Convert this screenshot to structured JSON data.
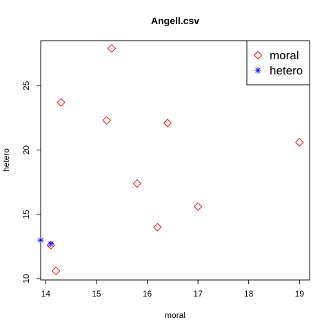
{
  "chart_data": {
    "type": "scatter",
    "title": "Angell.csv",
    "xlabel": "moral",
    "ylabel": "hetero",
    "xlim": [
      13.9,
      19.2
    ],
    "ylim": [
      9.9,
      28.5
    ],
    "xticks": [
      "14",
      "15",
      "16",
      "17",
      "18",
      "19"
    ],
    "yticks": [
      "10",
      "15",
      "20",
      "25"
    ],
    "legend_position": "top-right",
    "grid": false,
    "series": [
      {
        "name": "moral",
        "marker": "diamond",
        "color": "#ff0000",
        "points": [
          [
            15.3,
            27.9
          ],
          [
            14.3,
            23.7
          ],
          [
            15.2,
            22.3
          ],
          [
            16.4,
            22.1
          ],
          [
            19.0,
            20.6
          ],
          [
            15.8,
            17.4
          ],
          [
            17.0,
            15.6
          ],
          [
            16.2,
            14.0
          ],
          [
            14.1,
            12.6
          ],
          [
            14.2,
            10.6
          ]
        ]
      },
      {
        "name": "hetero",
        "marker": "asterisk",
        "color": "#0000ff",
        "points": [
          [
            13.9,
            13.0
          ],
          [
            14.1,
            12.7
          ]
        ]
      }
    ]
  }
}
